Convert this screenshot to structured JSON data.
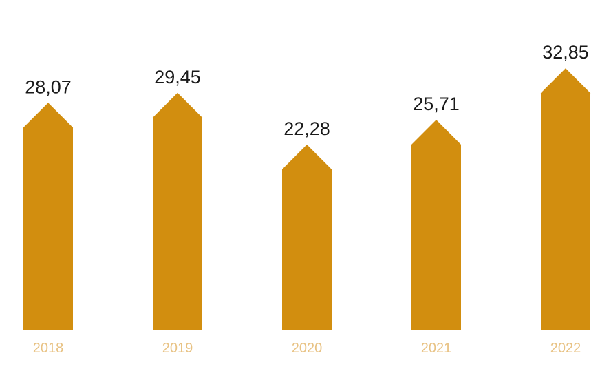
{
  "chart_data": {
    "type": "bar",
    "title": "",
    "xlabel": "",
    "ylabel": "",
    "categories": [
      "2018",
      "2019",
      "2020",
      "2021",
      "2022"
    ],
    "values": [
      28.07,
      29.45,
      22.28,
      25.71,
      32.85
    ],
    "value_labels": [
      "28,07",
      "29,45",
      "22,28",
      "25,71",
      "32,85"
    ],
    "ylim": [
      0,
      40
    ],
    "grid": false,
    "legend": "none",
    "bar_shape": "arrow-up"
  },
  "colors": {
    "bar": "#D28E0F",
    "value_label": "#1a1a1a",
    "tick_label": "#E8C283",
    "background": "#ffffff"
  }
}
